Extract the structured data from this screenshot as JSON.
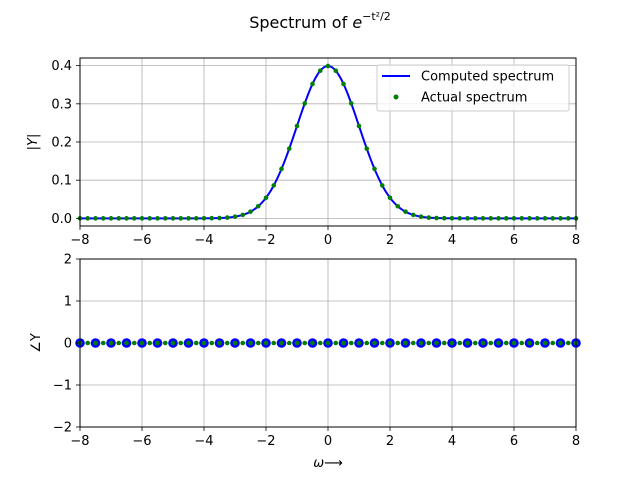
{
  "chart_data": {
    "title": {
      "base": "Spectrum of ",
      "var": "e",
      "exp": "−t²/2"
    },
    "legend_placement": "top-right",
    "grid": true,
    "x": [
      -8.0,
      -7.5,
      -7.0,
      -6.5,
      -6.0,
      -5.5,
      -5.0,
      -4.5,
      -4.0,
      -3.5,
      -3.0,
      -2.5,
      -2.0,
      -1.5,
      -1.0,
      -0.5,
      0.0,
      0.5,
      1.0,
      1.5,
      2.0,
      2.5,
      3.0,
      3.5,
      4.0,
      4.5,
      5.0,
      5.5,
      6.0,
      6.5,
      7.0,
      7.5,
      8.0
    ],
    "subplots": [
      {
        "type": "line",
        "ylabel": "|Y|",
        "xlim": [
          -8,
          8
        ],
        "ylim": [
          -0.02,
          0.42
        ],
        "xticks": [
          "−8",
          "−6",
          "−4",
          "−2",
          "0",
          "2",
          "4",
          "6",
          "8"
        ],
        "yticks": [
          "0.0",
          "0.1",
          "0.2",
          "0.3",
          "0.4"
        ],
        "series": [
          {
            "name": "Computed spectrum",
            "style": "line",
            "color": "#0000ff"
          },
          {
            "name": "Actual spectrum",
            "style": "dots",
            "color": "#008000"
          }
        ]
      },
      {
        "type": "scatter",
        "ylabel": "∠Y",
        "xlabel": "ω⟶",
        "xlim": [
          -8,
          8
        ],
        "ylim": [
          -2,
          2
        ],
        "xticks": [
          "−8",
          "−6",
          "−4",
          "−2",
          "0",
          "2",
          "4",
          "6",
          "8"
        ],
        "yticks": [
          "−2",
          "−1",
          "0",
          "1",
          "2"
        ],
        "phase_values": [
          0,
          0,
          0,
          0,
          0,
          0,
          0,
          0,
          0,
          0,
          0,
          0,
          0,
          0,
          0,
          0,
          0,
          0,
          0,
          0,
          0,
          0,
          0,
          0,
          0,
          0,
          0,
          0,
          0,
          0,
          0,
          0,
          0
        ],
        "series": [
          {
            "name": "Computed spectrum",
            "style": "markers",
            "color": "#0000ff"
          },
          {
            "name": "Actual spectrum",
            "style": "dots",
            "color": "#008000"
          }
        ]
      }
    ]
  }
}
